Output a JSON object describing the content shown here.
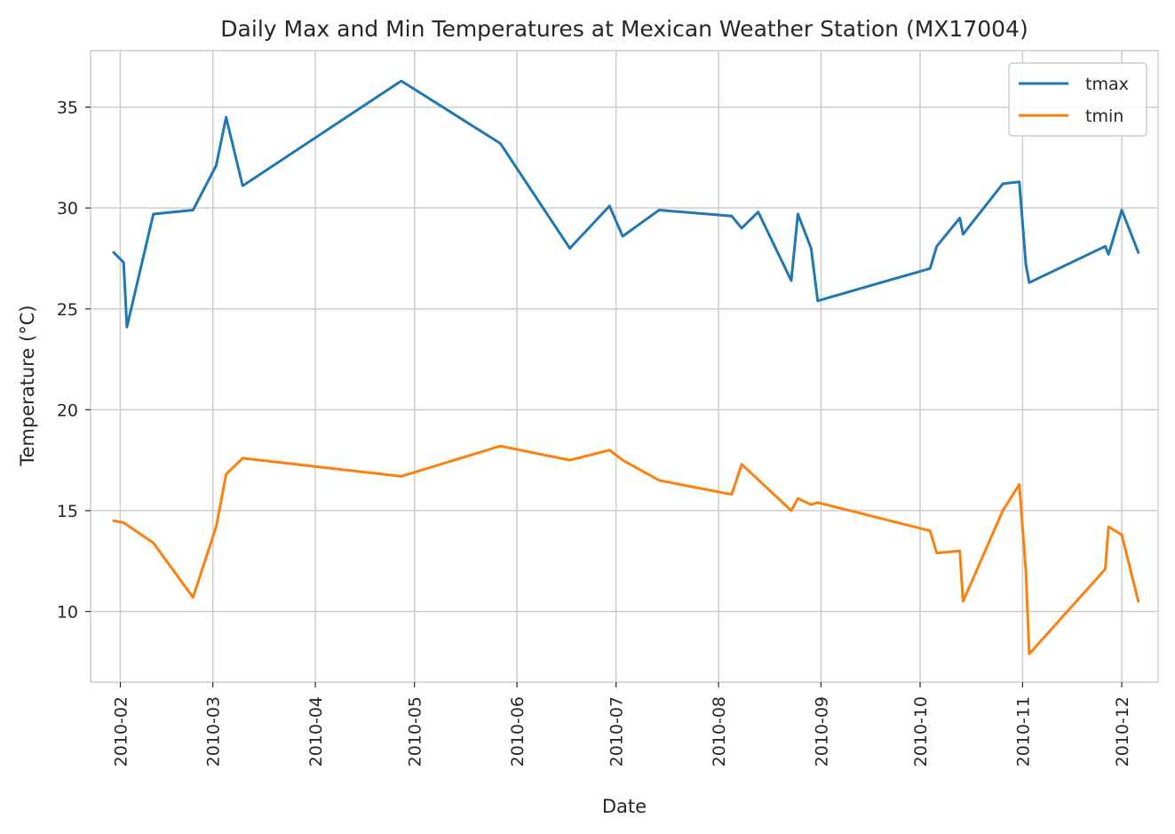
{
  "chart_data": {
    "type": "line",
    "title": "Daily Max and Min Temperatures at Mexican Weather Station (MX17004)",
    "xlabel": "Date",
    "ylabel": "Temperature (°C)",
    "xlim": [
      "2010-01-23",
      "2010-12-12"
    ],
    "ylim": [
      6.5,
      37.8
    ],
    "grid": true,
    "legend_position": "top-right",
    "x_ticks": [
      "2010-02-01",
      "2010-03-01",
      "2010-04-01",
      "2010-05-01",
      "2010-06-01",
      "2010-07-01",
      "2010-08-01",
      "2010-09-01",
      "2010-10-01",
      "2010-11-01",
      "2010-12-01"
    ],
    "x_tick_labels": [
      "2010-02",
      "2010-03",
      "2010-04",
      "2010-05",
      "2010-06",
      "2010-07",
      "2010-08",
      "2010-09",
      "2010-10",
      "2010-11",
      "2010-12"
    ],
    "y_ticks": [
      10,
      15,
      20,
      25,
      30,
      35
    ],
    "y_tick_labels": [
      "10",
      "15",
      "20",
      "25",
      "30",
      "35"
    ],
    "x": [
      "2010-01-30",
      "2010-02-02",
      "2010-02-03",
      "2010-02-11",
      "2010-02-23",
      "2010-03-02",
      "2010-03-05",
      "2010-03-10",
      "2010-03-16",
      "2010-04-27",
      "2010-05-27",
      "2010-06-17",
      "2010-06-29",
      "2010-07-03",
      "2010-07-14",
      "2010-08-05",
      "2010-08-08",
      "2010-08-13",
      "2010-08-23",
      "2010-08-25",
      "2010-08-29",
      "2010-08-31",
      "2010-10-04",
      "2010-10-06",
      "2010-10-13",
      "2010-10-14",
      "2010-10-26",
      "2010-10-31",
      "2010-11-02",
      "2010-11-03",
      "2010-11-04",
      "2010-11-26",
      "2010-11-27",
      "2010-12-01",
      "2010-12-06"
    ],
    "series": [
      {
        "name": "tmax",
        "color": "#1f77b4",
        "values": [
          27.8,
          27.3,
          24.1,
          29.7,
          29.9,
          32.1,
          34.5,
          31.1,
          null,
          36.3,
          33.2,
          28.0,
          30.1,
          28.6,
          29.9,
          29.6,
          29.0,
          29.8,
          26.4,
          29.7,
          28.0,
          25.4,
          27.0,
          28.1,
          29.5,
          28.7,
          31.2,
          31.3,
          27.2,
          26.3,
          null,
          28.1,
          27.7,
          29.9,
          27.8
        ]
      },
      {
        "name": "tmin",
        "color": "#ff7f0e",
        "values": [
          14.5,
          14.4,
          null,
          13.4,
          10.7,
          14.2,
          16.8,
          17.6,
          null,
          16.7,
          18.2,
          17.5,
          18.0,
          17.5,
          16.5,
          15.8,
          17.3,
          null,
          15.0,
          15.6,
          15.3,
          15.4,
          14.0,
          12.9,
          13.0,
          10.5,
          15.0,
          16.3,
          12.0,
          7.9,
          null,
          12.1,
          14.2,
          13.8,
          10.5
        ]
      }
    ]
  }
}
